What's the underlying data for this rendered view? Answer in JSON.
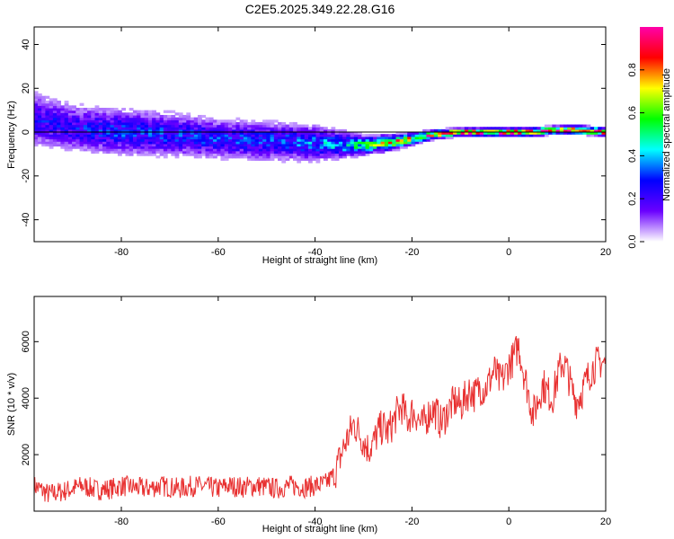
{
  "chart_data": [
    {
      "type": "heatmap",
      "title": "C2E5.2025.349.22.28.G16",
      "xlabel": "Height of straight line (km)",
      "ylabel": "Frequency (Hz)",
      "xlim": [
        -98,
        20
      ],
      "ylim": [
        -50,
        48
      ],
      "xticks": [
        -80,
        -60,
        -40,
        -20,
        0,
        20
      ],
      "xtick_labels": [
        "-80",
        "-60",
        "-40",
        "-20",
        "0",
        "20"
      ],
      "yticks": [
        -40,
        -20,
        0,
        20,
        40
      ],
      "ytick_labels": [
        "-40",
        "-20",
        "0",
        "20",
        "40"
      ],
      "ridge": {
        "x": [
          -98,
          -90,
          -80,
          -70,
          -60,
          -50,
          -40,
          -30,
          -25,
          -20,
          -15,
          -10,
          -5,
          0,
          5,
          10,
          15,
          20
        ],
        "y": [
          6,
          2,
          0,
          -1,
          -3,
          -4,
          -5,
          -6,
          -5,
          -3,
          -1,
          0,
          0,
          0,
          0,
          1,
          1,
          0
        ],
        "amplitude": [
          0.25,
          0.25,
          0.3,
          0.3,
          0.3,
          0.3,
          0.35,
          0.5,
          0.7,
          0.75,
          0.85,
          0.9,
          0.95,
          0.95,
          0.9,
          0.95,
          0.95,
          0.95
        ],
        "spread": [
          14,
          12,
          12,
          11,
          10,
          10,
          9,
          5,
          4,
          3,
          2,
          2,
          2,
          2,
          2,
          2,
          2,
          2
        ]
      },
      "colorbar": {
        "label": "Normalized spectral amplitude",
        "range": [
          0,
          1
        ],
        "ticks": [
          0.0,
          0.2,
          0.4,
          0.6,
          0.8
        ],
        "tick_labels": [
          "0.0",
          "0.2",
          "0.4",
          "0.6",
          "0.8"
        ],
        "colors": [
          "#ffffff",
          "#6a00ff",
          "#0000ff",
          "#00ffff",
          "#00ff00",
          "#ffff00",
          "#ff0000",
          "#ff00aa"
        ]
      }
    },
    {
      "type": "line",
      "xlabel": "Height of straight line (km)",
      "ylabel": "SNR (10 * v/v)",
      "xlim": [
        -98,
        20
      ],
      "ylim": [
        0,
        7600
      ],
      "xticks": [
        -80,
        -60,
        -40,
        -20,
        0,
        20
      ],
      "xtick_labels": [
        "-80",
        "-60",
        "-40",
        "-20",
        "0",
        "20"
      ],
      "yticks": [
        2000,
        4000,
        6000
      ],
      "ytick_labels": [
        "2000",
        "4000",
        "6000"
      ],
      "color": "#e83030",
      "series": [
        {
          "name": "SNR",
          "x": [
            -98,
            -95,
            -92,
            -90,
            -88,
            -85,
            -82,
            -80,
            -78,
            -75,
            -72,
            -70,
            -68,
            -65,
            -62,
            -60,
            -58,
            -55,
            -52,
            -50,
            -48,
            -45,
            -42,
            -40,
            -38,
            -36,
            -35,
            -34,
            -33,
            -32,
            -31,
            -30,
            -29,
            -28,
            -27,
            -26,
            -25,
            -24,
            -23,
            -22,
            -21,
            -20,
            -19,
            -18,
            -17,
            -16,
            -15,
            -14,
            -13,
            -12,
            -11,
            -10,
            -9,
            -8,
            -7,
            -6,
            -5,
            -4,
            -3,
            -2,
            -1,
            0,
            1,
            2,
            3,
            4,
            5,
            6,
            7,
            8,
            9,
            10,
            11,
            12,
            13,
            14,
            15,
            16,
            17,
            18,
            19,
            20
          ],
          "y": [
            900,
            600,
            700,
            800,
            900,
            750,
            800,
            900,
            850,
            800,
            900,
            850,
            800,
            900,
            850,
            800,
            900,
            850,
            900,
            850,
            800,
            900,
            850,
            900,
            950,
            1300,
            1800,
            2300,
            2700,
            3100,
            2800,
            2500,
            2200,
            2400,
            2800,
            3000,
            2800,
            3100,
            3500,
            3700,
            3200,
            3500,
            3400,
            3000,
            3300,
            3600,
            3500,
            3100,
            3400,
            3700,
            3900,
            3700,
            4000,
            4300,
            4100,
            4400,
            4300,
            4600,
            5000,
            4600,
            4700,
            5200,
            5400,
            5900,
            5000,
            4200,
            3400,
            3900,
            4500,
            4200,
            4000,
            4700,
            5300,
            5000,
            4300,
            3900,
            4200,
            4600,
            5000,
            5200,
            5300,
            5200
          ]
        }
      ]
    }
  ]
}
